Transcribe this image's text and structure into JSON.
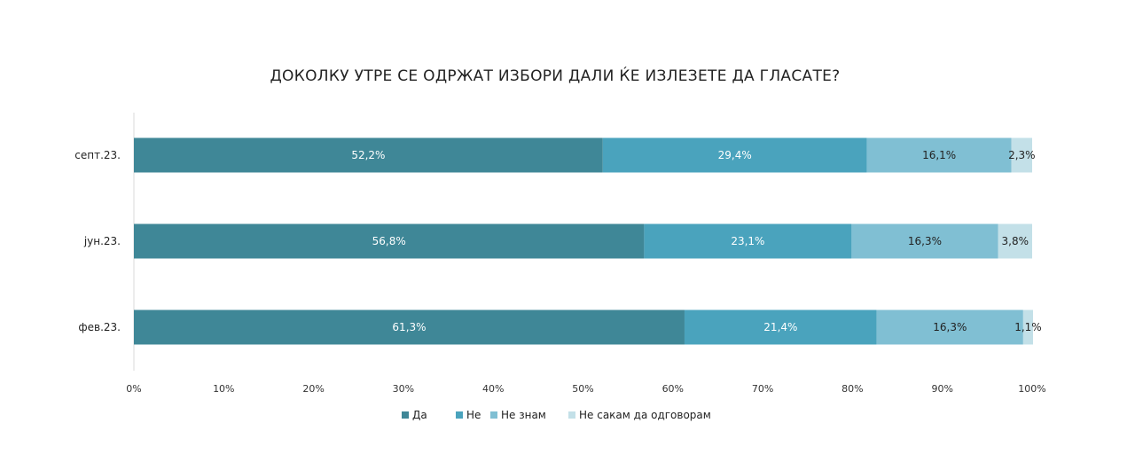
{
  "chart_data": {
    "type": "bar",
    "orientation": "horizontal",
    "stacked": true,
    "title": "ДОКОЛКУ УТРЕ СЕ ОДРЖАТ ИЗБОРИ ДАЛИ ЌЕ ИЗЛЕЗЕТЕ ДА ГЛАСАТЕ?",
    "xlabel": "",
    "ylabel": "",
    "xlim": [
      0,
      100
    ],
    "x_ticks": [
      "0%",
      "10%",
      "20%",
      "30%",
      "40%",
      "50%",
      "60%",
      "70%",
      "80%",
      "90%",
      "100%"
    ],
    "categories": [
      "септ.23.",
      "јун.23.",
      "фев.23."
    ],
    "series": [
      {
        "name": "Да",
        "color": "#3f8797",
        "text_color": "#ffffff",
        "values": [
          52.2,
          56.8,
          61.3
        ],
        "labels": [
          "52,2%",
          "56,8%",
          "61,3%"
        ]
      },
      {
        "name": "Не",
        "color": "#4aa3bd",
        "text_color": "#ffffff",
        "values": [
          29.4,
          23.1,
          21.4
        ],
        "labels": [
          "29,4%",
          "23,1%",
          "21,4%"
        ]
      },
      {
        "name": "Не знам",
        "color": "#80bfd3",
        "text_color": "#222222",
        "values": [
          16.1,
          16.3,
          16.3
        ],
        "labels": [
          "16,1%",
          "16,3%",
          "16,3%"
        ]
      },
      {
        "name": "Не сакам да одговорам",
        "color": "#c3e0e8",
        "text_color": "#222222",
        "values": [
          2.3,
          3.8,
          1.1
        ],
        "labels": [
          "2,3%",
          "3,8%",
          "1,1%"
        ]
      }
    ],
    "grid": false,
    "legend_position": "bottom"
  }
}
